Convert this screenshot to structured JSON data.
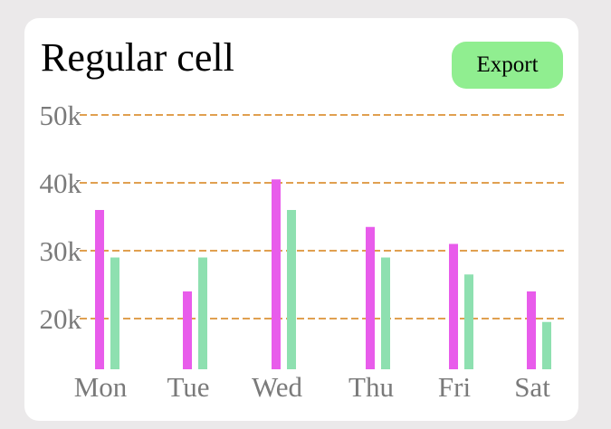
{
  "header": {
    "title": "Regular cell",
    "export_label": "Export"
  },
  "colors": {
    "background": "#ebe9ea",
    "card": "#ffffff",
    "export_button": "#90ee90",
    "gridline": "#e0a050",
    "axis_text": "#7a7a7a"
  },
  "chart_data": {
    "type": "bar",
    "title": "Regular cell",
    "categories": [
      "Mon",
      "Tue",
      "Wed",
      "Thu",
      "Fri",
      "Sat"
    ],
    "series": [
      {
        "values": [
          36000,
          24000,
          40500,
          33500,
          31000,
          24000
        ],
        "color": "#e85ceb"
      },
      {
        "values": [
          29000,
          29000,
          36000,
          29000,
          26500,
          19500
        ],
        "color": "#8ee0b0"
      }
    ],
    "y_ticks": [
      "20k",
      "30k",
      "40k",
      "50k"
    ],
    "y_tick_values": [
      20000,
      30000,
      40000,
      50000
    ],
    "ylim": [
      12000,
      50000
    ],
    "grid": "horizontal dashed",
    "legend": "none"
  }
}
